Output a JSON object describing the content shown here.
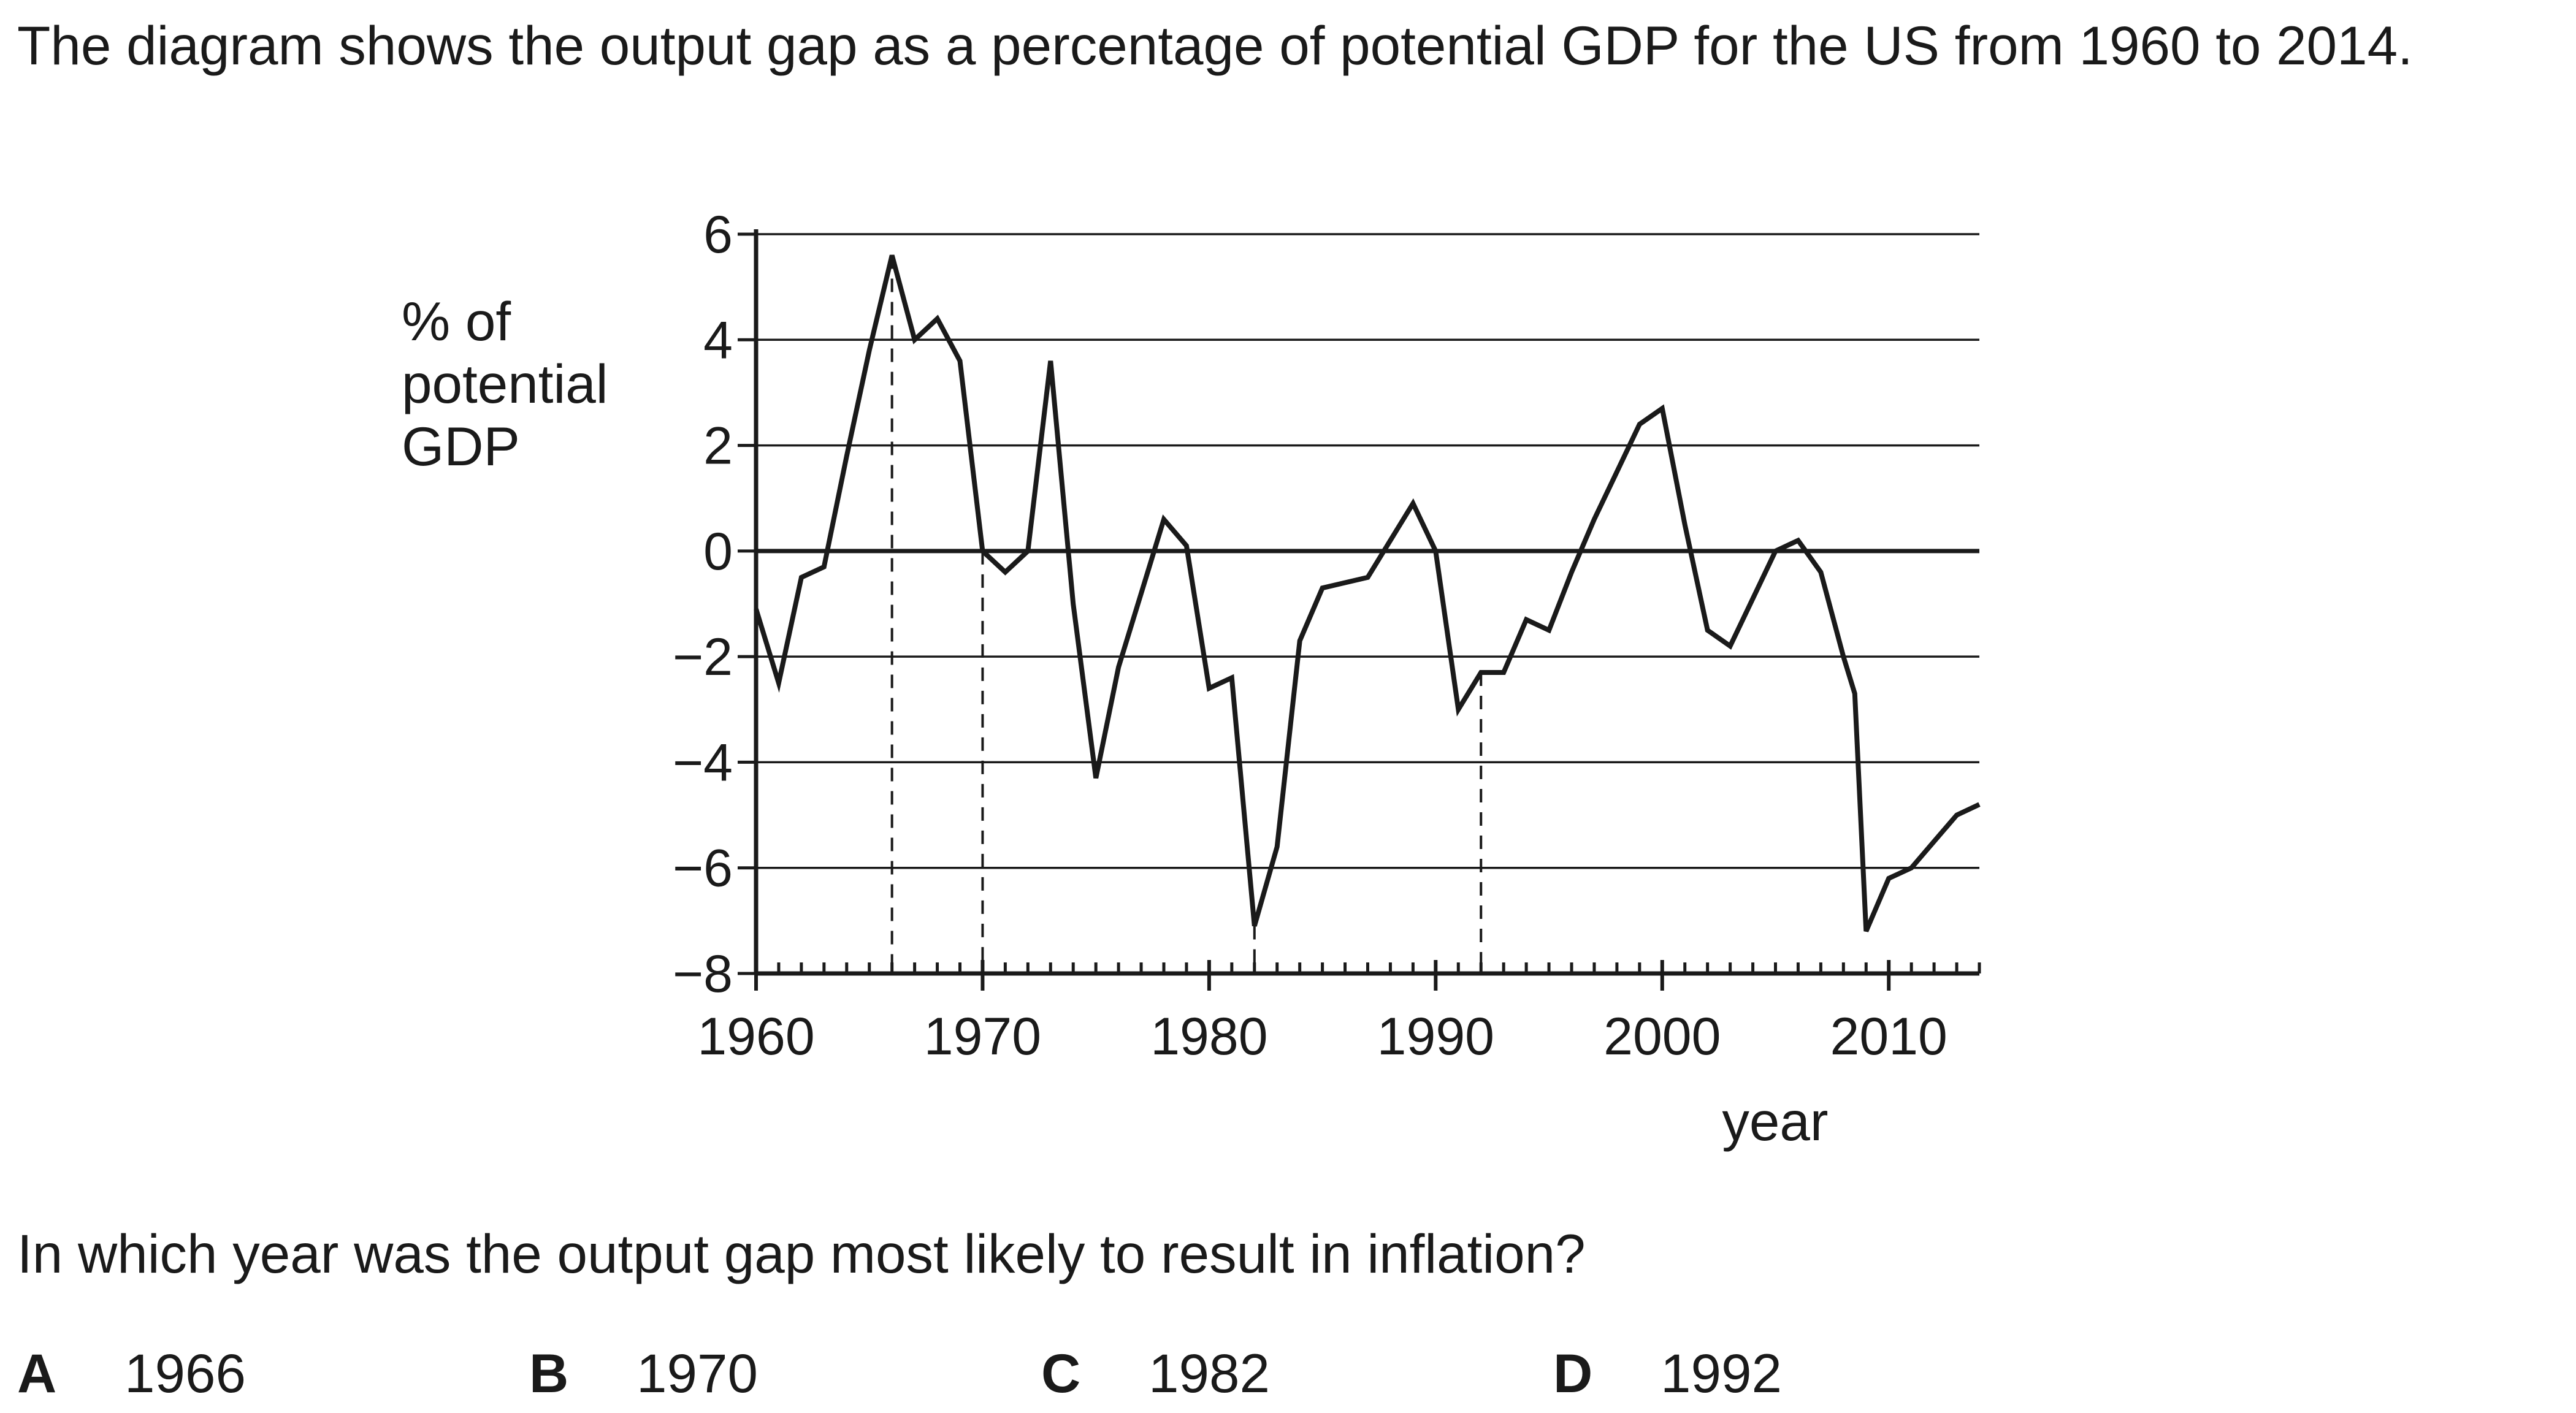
{
  "intro_text": "The diagram shows the output gap as a percentage of potential GDP for the US from 1960 to 2014.",
  "question_text": "In which year was the output gap most likely to result in inflation?",
  "options": [
    {
      "letter": "A",
      "value": "1966"
    },
    {
      "letter": "B",
      "value": "1970"
    },
    {
      "letter": "C",
      "value": "1982"
    },
    {
      "letter": "D",
      "value": "1992"
    }
  ],
  "chart_data": {
    "type": "line",
    "title": "",
    "ylabel_lines": [
      "% of",
      "potential",
      "GDP"
    ],
    "xlabel": "year",
    "xlim": [
      1960,
      2014
    ],
    "ylim": [
      -8,
      6
    ],
    "yticks": [
      6,
      4,
      2,
      0,
      -2,
      -4,
      -6,
      -8
    ],
    "ytick_labels": [
      "6",
      "4",
      "2",
      "0",
      "−2",
      "−4",
      "−6",
      "−8"
    ],
    "xticks": [
      1960,
      1970,
      1980,
      1990,
      2000,
      2010
    ],
    "xtick_labels": [
      "1960",
      "1970",
      "1980",
      "1990",
      "2000",
      "2010"
    ],
    "grid": "horizontal",
    "dashed_markers": [
      1966,
      1970,
      1982,
      1992
    ],
    "color": "#1a1a1a",
    "series": [
      {
        "x": [
          1960,
          1961,
          1962,
          1963,
          1964,
          1965,
          1966,
          1967,
          1968,
          1969,
          1970,
          1971,
          1972,
          1973,
          1974,
          1975,
          1976,
          1977,
          1978,
          1979,
          1980,
          1981,
          1982,
          1983,
          1984,
          1985,
          1986,
          1987,
          1988,
          1989,
          1990,
          1991,
          1992,
          1993,
          1994,
          1995,
          1996,
          1997,
          1998,
          1999,
          2000,
          2001,
          2002,
          2003,
          2004,
          2005,
          2006,
          2007,
          2008,
          2008.5,
          2009,
          2010,
          2011,
          2012,
          2013,
          2014
        ],
        "values": [
          -1.1,
          -2.5,
          -0.5,
          -0.3,
          1.8,
          3.8,
          5.6,
          4.0,
          4.4,
          3.6,
          0.0,
          -0.4,
          0.0,
          3.6,
          -1.0,
          -4.3,
          -2.2,
          -0.8,
          0.6,
          0.1,
          -2.6,
          -2.4,
          -7.1,
          -5.6,
          -1.7,
          -0.7,
          -0.6,
          -0.5,
          0.2,
          0.9,
          0.0,
          -3.0,
          -2.3,
          -2.3,
          -1.3,
          -1.5,
          -0.4,
          0.6,
          1.5,
          2.4,
          2.7,
          0.5,
          -1.5,
          -1.8,
          -0.9,
          0.0,
          0.2,
          -0.4,
          -2.0,
          -2.7,
          -7.2,
          -6.2,
          -6.0,
          -5.5,
          -5.0,
          -4.8
        ]
      }
    ]
  }
}
